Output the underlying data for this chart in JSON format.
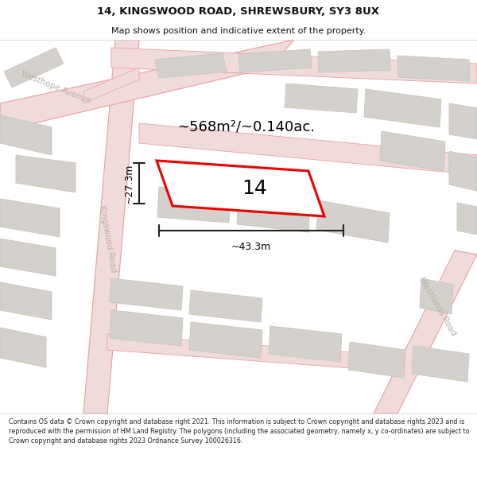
{
  "title": "14, KINGSWOOD ROAD, SHREWSBURY, SY3 8UX",
  "subtitle": "Map shows position and indicative extent of the property.",
  "area_text": "~568m²/~0.140ac.",
  "label_14": "14",
  "dim_width": "~43.3m",
  "dim_height": "~27.3m",
  "road_label_kingswood": "Kingswood Road",
  "road_label_westhope": "Westhope Avenue",
  "road_label_westlands": "Westlands Road",
  "footer": "Contains OS data © Crown copyright and database right 2021. This information is subject to Crown copyright and database rights 2023 and is reproduced with the permission of HM Land Registry. The polygons (including the associated geometry, namely x, y co-ordinates) are subject to Crown copyright and database rights 2023 Ordnance Survey 100026316.",
  "bg_color": "#ffffff",
  "map_bg": "#eeece9",
  "block_color": "#d4d0cb",
  "block_edge": "#c8c4be",
  "road_fill": "#f0dada",
  "road_edge": "#e8a0a0",
  "highlight_color": "#ee0000",
  "highlight_fill": "#ffffff",
  "dim_color": "#222222",
  "title_color": "#111111",
  "footer_color": "#222222",
  "road_text_color": "#b8b0a8",
  "title_fontsize": 9.5,
  "subtitle_fontsize": 8.0,
  "area_fontsize": 13,
  "label_fontsize": 18,
  "dim_fontsize": 9,
  "road_fontsize": 7.5,
  "footer_fontsize": 5.8
}
